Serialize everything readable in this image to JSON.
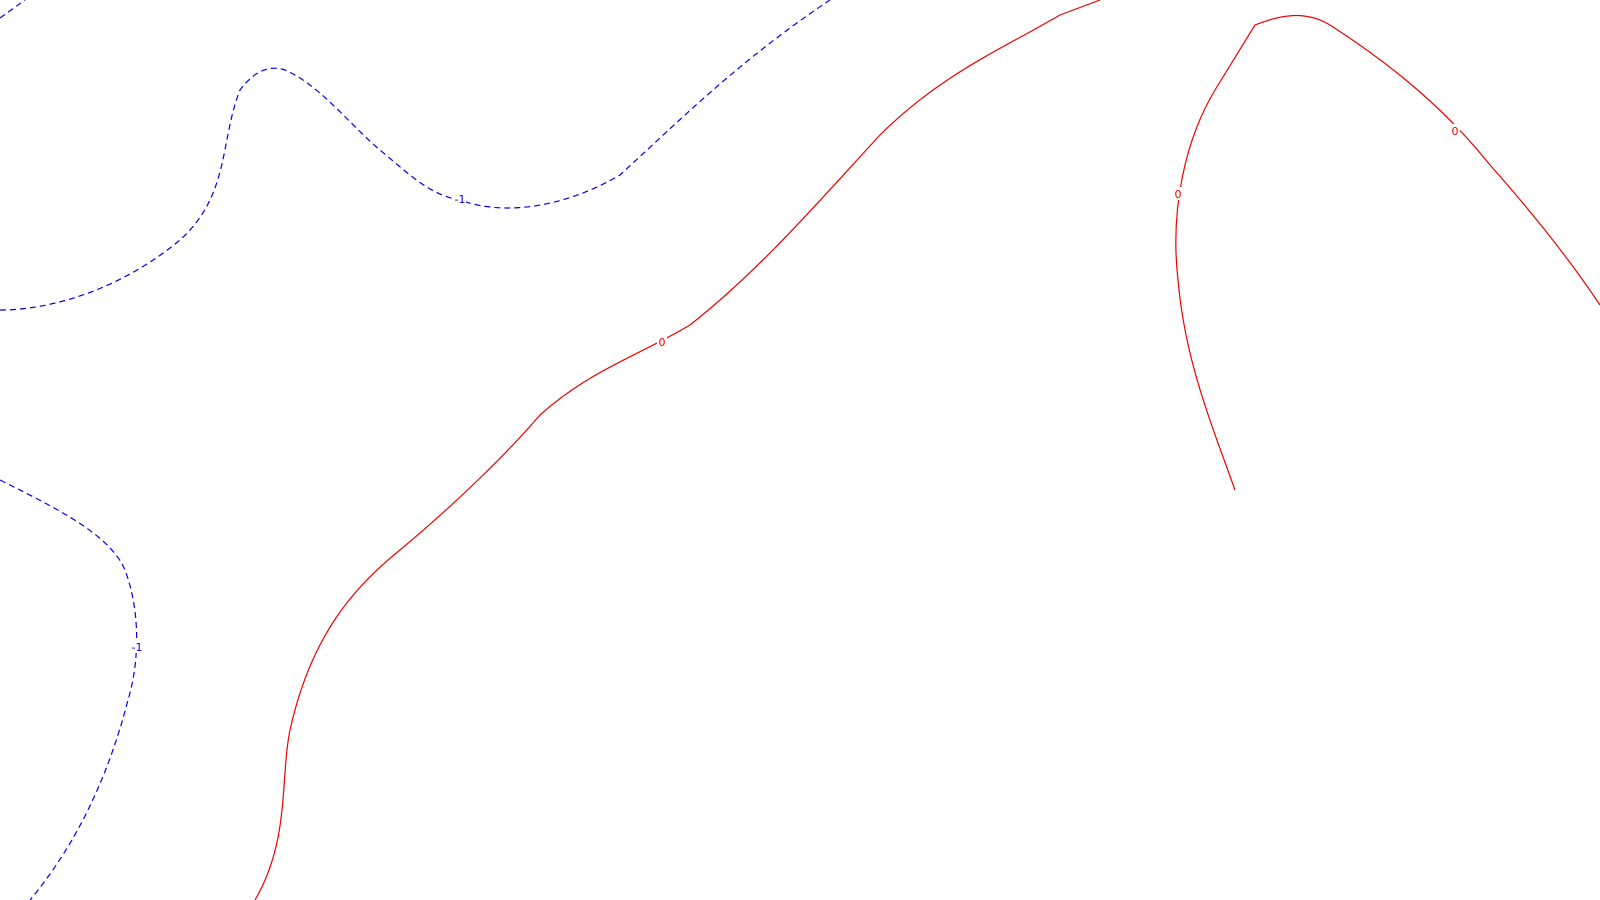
{
  "chart_data": {
    "type": "contour",
    "title": "",
    "xlabel": "",
    "ylabel": "",
    "grid": false,
    "legend": "none",
    "levels": [
      {
        "id": "neg1",
        "value": -1,
        "label": "-1",
        "color": "#0000ee",
        "line_style": "dashed"
      },
      {
        "id": "zero",
        "value": 0,
        "label": "0",
        "color": "#ee0000",
        "line_style": "solid"
      }
    ]
  }
}
